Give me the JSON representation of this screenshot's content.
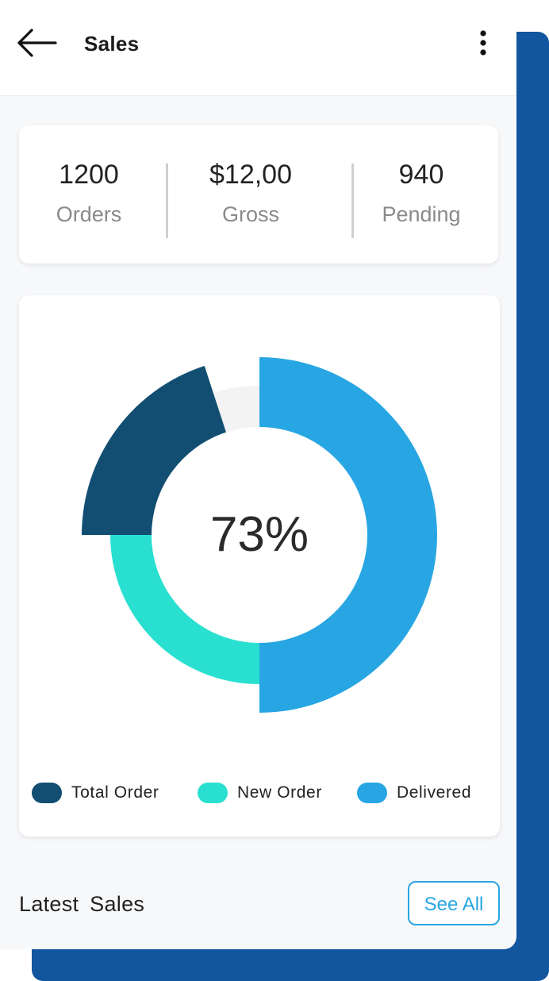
{
  "header": {
    "title": "Sales",
    "back_icon": "arrow-left-icon",
    "menu_icon": "more-vertical-icon"
  },
  "stats": [
    {
      "value": "1200",
      "label": "Orders"
    },
    {
      "value": "$12,00",
      "label": "Gross"
    },
    {
      "value": "940",
      "label": "Pending"
    }
  ],
  "chart_data": {
    "type": "pie",
    "center_label": "73%",
    "series": [
      {
        "name": "Total Order",
        "value": 20,
        "color": "#124e72"
      },
      {
        "name": "New Order",
        "value": 25,
        "color": "#29e0d0"
      },
      {
        "name": "Delivered",
        "value": 50,
        "color": "#27a6e3"
      }
    ],
    "track_color": "#f3f3f3",
    "legend_position": "bottom"
  },
  "latest_sales": {
    "title": "Latest  Sales",
    "see_all_label": "See All"
  },
  "colors": {
    "accent": "#27a6e3",
    "backdrop": "#12569f"
  }
}
